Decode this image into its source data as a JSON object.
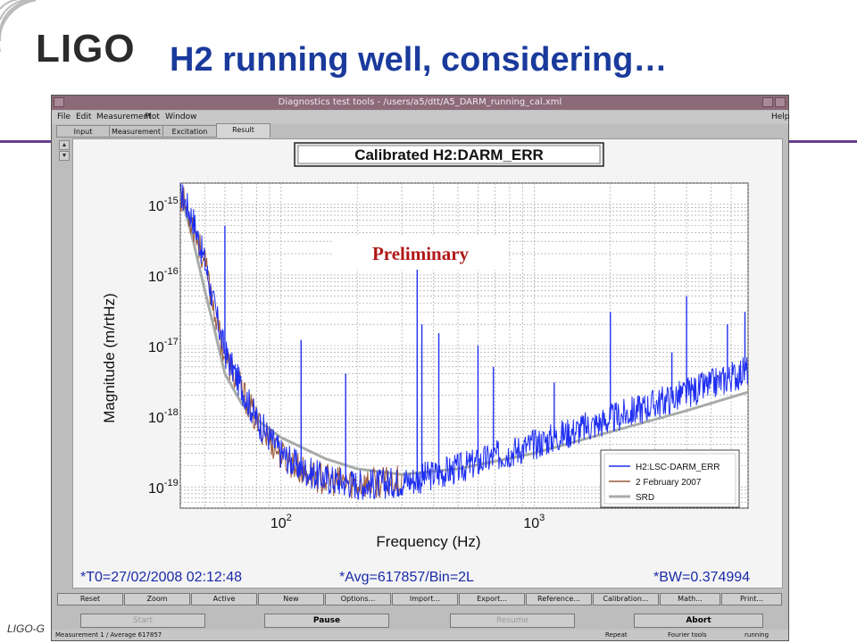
{
  "slide": {
    "title": "H2 running well, considering…",
    "logo": "LIGO",
    "footer": "LIGO-G",
    "accent_color": "#1a3a9c",
    "line_color": "#6a3f8c"
  },
  "window": {
    "title": "Diagnostics test tools - /users/a5/dtt/A5_DARM_running_cal.xml",
    "menu": [
      "File",
      "Edit",
      "Measurement",
      "Plot",
      "Window"
    ],
    "help": "Help",
    "tabs": [
      "Input",
      "Measurement",
      "Excitation",
      "Result"
    ],
    "active_tab": "Result",
    "status_line": {
      "t0": "*T0=27/02/2008 02:12:48",
      "avg": "*Avg=617857/Bin=2L",
      "bw": "*BW=0.374994"
    },
    "toolbar_buttons": [
      "Reset",
      "Zoom",
      "Active",
      "New",
      "Options...",
      "Import...",
      "Export...",
      "Reference...",
      "Calibration...",
      "Math...",
      "Print..."
    ],
    "control_buttons": {
      "start": "Start",
      "pause": "Pause",
      "resume": "Resume",
      "abort": "Abort"
    },
    "statusbar": {
      "measurement": "Measurement 1 / Average 617857",
      "repeat": "Repeat",
      "tools": "Fourier tools",
      "state": "running"
    }
  },
  "chart_data": {
    "type": "line",
    "title": "Calibrated H2:DARM_ERR",
    "annotation": "Preliminary",
    "xlabel": "Frequency (Hz)",
    "ylabel": "Magnitude (m/rtHz)",
    "x_scale": "log",
    "y_scale": "log",
    "xlim": [
      40,
      7000
    ],
    "ylim": [
      5e-20,
      2e-15
    ],
    "x_ticks": [
      {
        "value": 100,
        "label": "10",
        "exp": "2"
      },
      {
        "value": 1000,
        "label": "10",
        "exp": "3"
      }
    ],
    "y_ticks": [
      {
        "value": 1e-15,
        "label": "10",
        "exp": "-15"
      },
      {
        "value": 1e-16,
        "label": "10",
        "exp": "-16"
      },
      {
        "value": 1e-17,
        "label": "10",
        "exp": "-17"
      },
      {
        "value": 1e-18,
        "label": "10",
        "exp": "-18"
      },
      {
        "value": 1e-19,
        "label": "10",
        "exp": "-19"
      }
    ],
    "grid": true,
    "legend_position": "bottom-right",
    "series": [
      {
        "name": "H2:LSC-DARM_ERR",
        "color": "#1f2ff0",
        "x": [
          40,
          45,
          50,
          55,
          60,
          70,
          80,
          90,
          100,
          120,
          150,
          200,
          250,
          300,
          350,
          400,
          500,
          600,
          700,
          800,
          1000,
          1200,
          1500,
          2000,
          2500,
          3000,
          4000,
          5000,
          6000,
          7000
        ],
        "y": [
          1.5e-15,
          6e-16,
          1.5e-16,
          3e-17,
          8e-18,
          2.5e-18,
          9e-19,
          5e-19,
          3e-19,
          1.8e-19,
          1.3e-19,
          1.1e-19,
          1.1e-19,
          1.2e-19,
          1.3e-19,
          1.5e-19,
          1.8e-19,
          2.2e-19,
          2.7e-19,
          3.1e-19,
          4e-19,
          5e-19,
          6.5e-19,
          9e-19,
          1.2e-18,
          1.5e-18,
          2.1e-18,
          2.8e-18,
          3.6e-18,
          4.5e-18
        ],
        "peaks": [
          {
            "x": 60,
            "y": 5e-16
          },
          {
            "x": 120,
            "y": 1.2e-17
          },
          {
            "x": 180,
            "y": 4e-18
          },
          {
            "x": 345,
            "y": 2e-16
          },
          {
            "x": 360,
            "y": 2e-17
          },
          {
            "x": 420,
            "y": 1.5e-17
          },
          {
            "x": 600,
            "y": 1e-17
          },
          {
            "x": 690,
            "y": 5e-18
          },
          {
            "x": 1200,
            "y": 3e-18
          },
          {
            "x": 2000,
            "y": 3e-17
          },
          {
            "x": 3500,
            "y": 8e-18
          },
          {
            "x": 4000,
            "y": 5e-17
          },
          {
            "x": 5800,
            "y": 2e-17
          },
          {
            "x": 6800,
            "y": 3e-17
          }
        ]
      },
      {
        "name": "2 February 2007",
        "color": "#9b5a3c",
        "x": [
          40,
          45,
          50,
          55,
          60,
          70,
          80,
          100,
          120,
          150,
          200,
          250,
          300
        ],
        "y": [
          1.4e-15,
          5e-16,
          1.4e-16,
          2.8e-17,
          7e-18,
          2.3e-18,
          8.5e-19,
          2.8e-19,
          1.7e-19,
          1.25e-19,
          1.1e-19,
          1.15e-19,
          1.25e-19
        ]
      },
      {
        "name": "SRD",
        "color": "#a8aca8",
        "x": [
          40,
          45,
          50,
          55,
          60,
          70,
          80,
          100,
          150,
          200,
          300,
          500,
          1000,
          2000,
          4000,
          7000
        ],
        "y": [
          1.5e-15,
          3e-16,
          6e-17,
          1.5e-17,
          4e-18,
          1.5e-18,
          9e-19,
          5e-19,
          2.5e-19,
          1.8e-19,
          1.5e-19,
          1.8e-19,
          3e-19,
          6e-19,
          1.2e-18,
          2.2e-18
        ]
      }
    ]
  }
}
